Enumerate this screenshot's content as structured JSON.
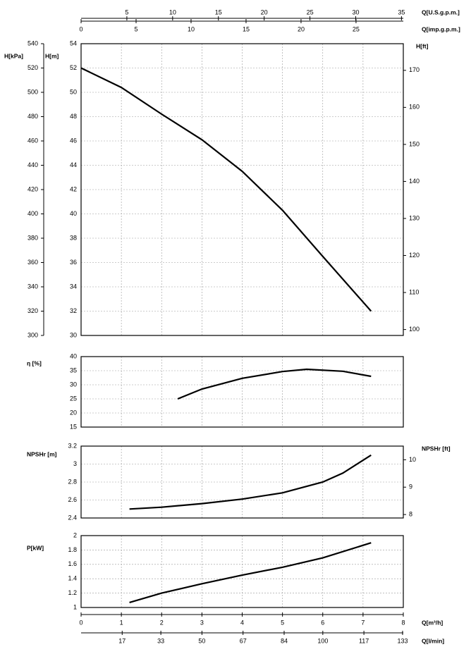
{
  "chart_data": [
    {
      "type": "line",
      "x": [
        0,
        1,
        2,
        3,
        4,
        5,
        6,
        7.2
      ],
      "values": [
        52,
        50.4,
        48.2,
        46.1,
        43.5,
        40.3,
        36.5,
        32
      ],
      "color": "#000000",
      "xlim": [
        0,
        8
      ],
      "xticks": [
        0,
        1,
        2,
        3,
        4,
        5,
        6,
        7,
        8
      ],
      "grid": true,
      "ylabel": "H[m]",
      "ylim": [
        30,
        54
      ],
      "yticks": [
        30,
        32,
        34,
        36,
        38,
        40,
        42,
        44,
        46,
        48,
        50,
        52,
        54
      ],
      "ylabel_left2": "H[kPa]",
      "ylim_left2": [
        300,
        540
      ],
      "yticks_left2": [
        300,
        320,
        340,
        360,
        380,
        400,
        420,
        440,
        460,
        480,
        500,
        520,
        540
      ],
      "y2label": "H[ft]",
      "y2lim": [
        98.4,
        177.2
      ],
      "y2ticks": [
        100,
        110,
        120,
        130,
        140,
        150,
        160,
        170
      ],
      "top_axes": [
        {
          "label": "Q[U.S.g.p.m.]",
          "xlim": [
            0,
            35.2
          ],
          "xticks": [
            5,
            10,
            15,
            20,
            25,
            30,
            35
          ]
        },
        {
          "label": "Q[imp.g.p.m.]",
          "xlim": [
            0,
            29.3
          ],
          "xticks": [
            0,
            5,
            10,
            15,
            20,
            25
          ]
        }
      ]
    },
    {
      "type": "line",
      "x": [
        2.4,
        3,
        4,
        5,
        5.6,
        6.5,
        7.2
      ],
      "values": [
        25,
        28.5,
        32.3,
        34.7,
        35.5,
        34.8,
        33
      ],
      "color": "#000000",
      "xlim": [
        0,
        8
      ],
      "xticks": [
        0,
        1,
        2,
        3,
        4,
        5,
        6,
        7,
        8
      ],
      "grid": true,
      "ylabel": "η [%]",
      "ylim": [
        15,
        40
      ],
      "yticks": [
        15,
        20,
        25,
        30,
        35,
        40
      ]
    },
    {
      "type": "line",
      "x": [
        1.2,
        2,
        3,
        4,
        5,
        6,
        6.5,
        7.2
      ],
      "values": [
        2.5,
        2.52,
        2.56,
        2.61,
        2.68,
        2.8,
        2.9,
        3.1
      ],
      "color": "#000000",
      "xlim": [
        0,
        8
      ],
      "xticks": [
        0,
        1,
        2,
        3,
        4,
        5,
        6,
        7,
        8
      ],
      "grid": true,
      "ylabel": "NPSHr [m]",
      "ylim": [
        2.4,
        3.2
      ],
      "yticks": [
        2.4,
        2.6,
        2.8,
        3,
        3.2
      ],
      "y2label": "NPSHr [ft]",
      "y2lim": [
        7.874,
        10.499
      ],
      "y2ticks": [
        8,
        9,
        10
      ]
    },
    {
      "type": "line",
      "x": [
        1.2,
        2,
        3,
        4,
        5,
        6,
        7.2
      ],
      "values": [
        1.07,
        1.2,
        1.33,
        1.45,
        1.56,
        1.69,
        1.9
      ],
      "color": "#000000",
      "xlim": [
        0,
        8
      ],
      "xticks": [
        0,
        1,
        2,
        3,
        4,
        5,
        6,
        7,
        8
      ],
      "grid": true,
      "ylabel": "P[kW]",
      "ylim": [
        1,
        2
      ],
      "yticks": [
        1,
        1.2,
        1.4,
        1.6,
        1.8,
        2
      ],
      "bottom_axes": [
        {
          "label": "Q[m³/h]",
          "xlim": [
            0,
            8
          ],
          "xticks": [
            0,
            1,
            2,
            3,
            4,
            5,
            6,
            7,
            8
          ]
        },
        {
          "label": "Q[l/min]",
          "xlim": [
            0,
            133.3
          ],
          "xticks": [
            17,
            33,
            50,
            67,
            84,
            100,
            117,
            133
          ]
        }
      ]
    }
  ]
}
